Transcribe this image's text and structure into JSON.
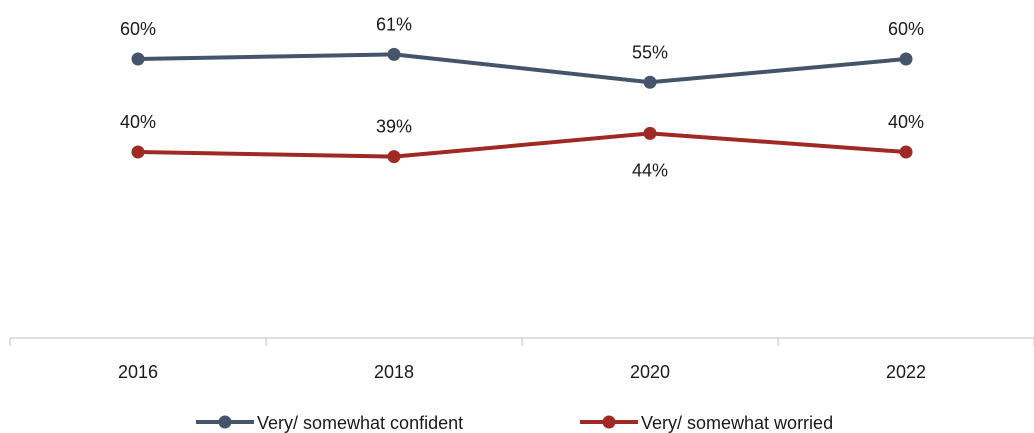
{
  "chart_data": {
    "type": "line",
    "title": "",
    "xlabel": "",
    "ylabel": "",
    "categories": [
      "2016",
      "2018",
      "2020",
      "2022"
    ],
    "ylim": [
      0,
      70
    ],
    "grid": false,
    "legend_position": "bottom",
    "series": [
      {
        "name": "Very/ somewhat confident",
        "values": [
          60,
          61,
          55,
          60
        ],
        "labels": [
          "60%",
          "61%",
          "55%",
          "60%"
        ],
        "label_position": [
          "above",
          "above",
          "above",
          "above"
        ],
        "color": "#44546a"
      },
      {
        "name": "Very/ somewhat worried",
        "values": [
          40,
          39,
          44,
          40
        ],
        "labels": [
          "40%",
          "39%",
          "44%",
          "40%"
        ],
        "label_position": [
          "above",
          "above",
          "below",
          "above"
        ],
        "color": "#9e2a23"
      }
    ],
    "axis_color": "#bfbfbf"
  }
}
